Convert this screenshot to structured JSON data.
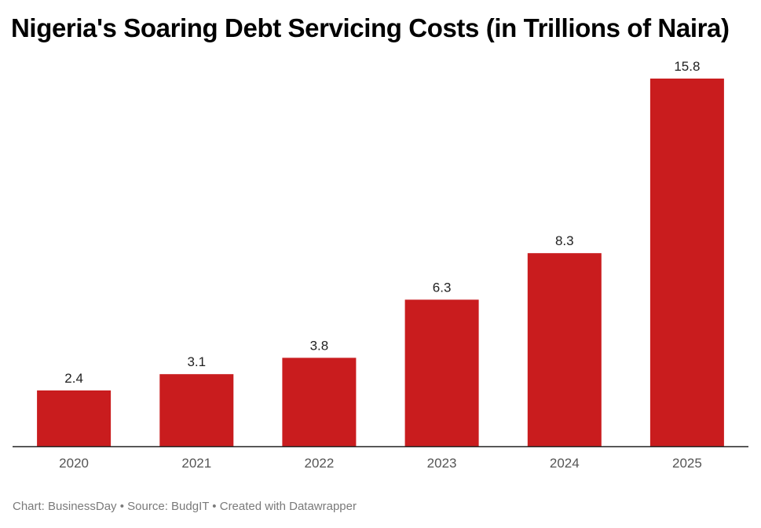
{
  "chart_data": {
    "type": "bar",
    "title": "Nigeria's Soaring Debt Servicing Costs (in Trillions of Naira)",
    "categories": [
      "2020",
      "2021",
      "2022",
      "2023",
      "2024",
      "2025"
    ],
    "values": [
      2.4,
      3.1,
      3.8,
      6.3,
      8.3,
      15.8
    ],
    "value_labels": [
      "2.4",
      "3.1",
      "3.8",
      "6.3",
      "8.3",
      "15.8"
    ],
    "xlabel": "",
    "ylabel": "",
    "ylim": [
      0,
      15.8
    ],
    "grid": false,
    "legend": "none",
    "bar_color": "#c91c1e",
    "axis_color": "#222222"
  },
  "footer": {
    "chart_credit": "Chart: BusinessDay",
    "source": "Source: BudgIT",
    "created_with": "Created with Datawrapper",
    "separator": "•"
  }
}
